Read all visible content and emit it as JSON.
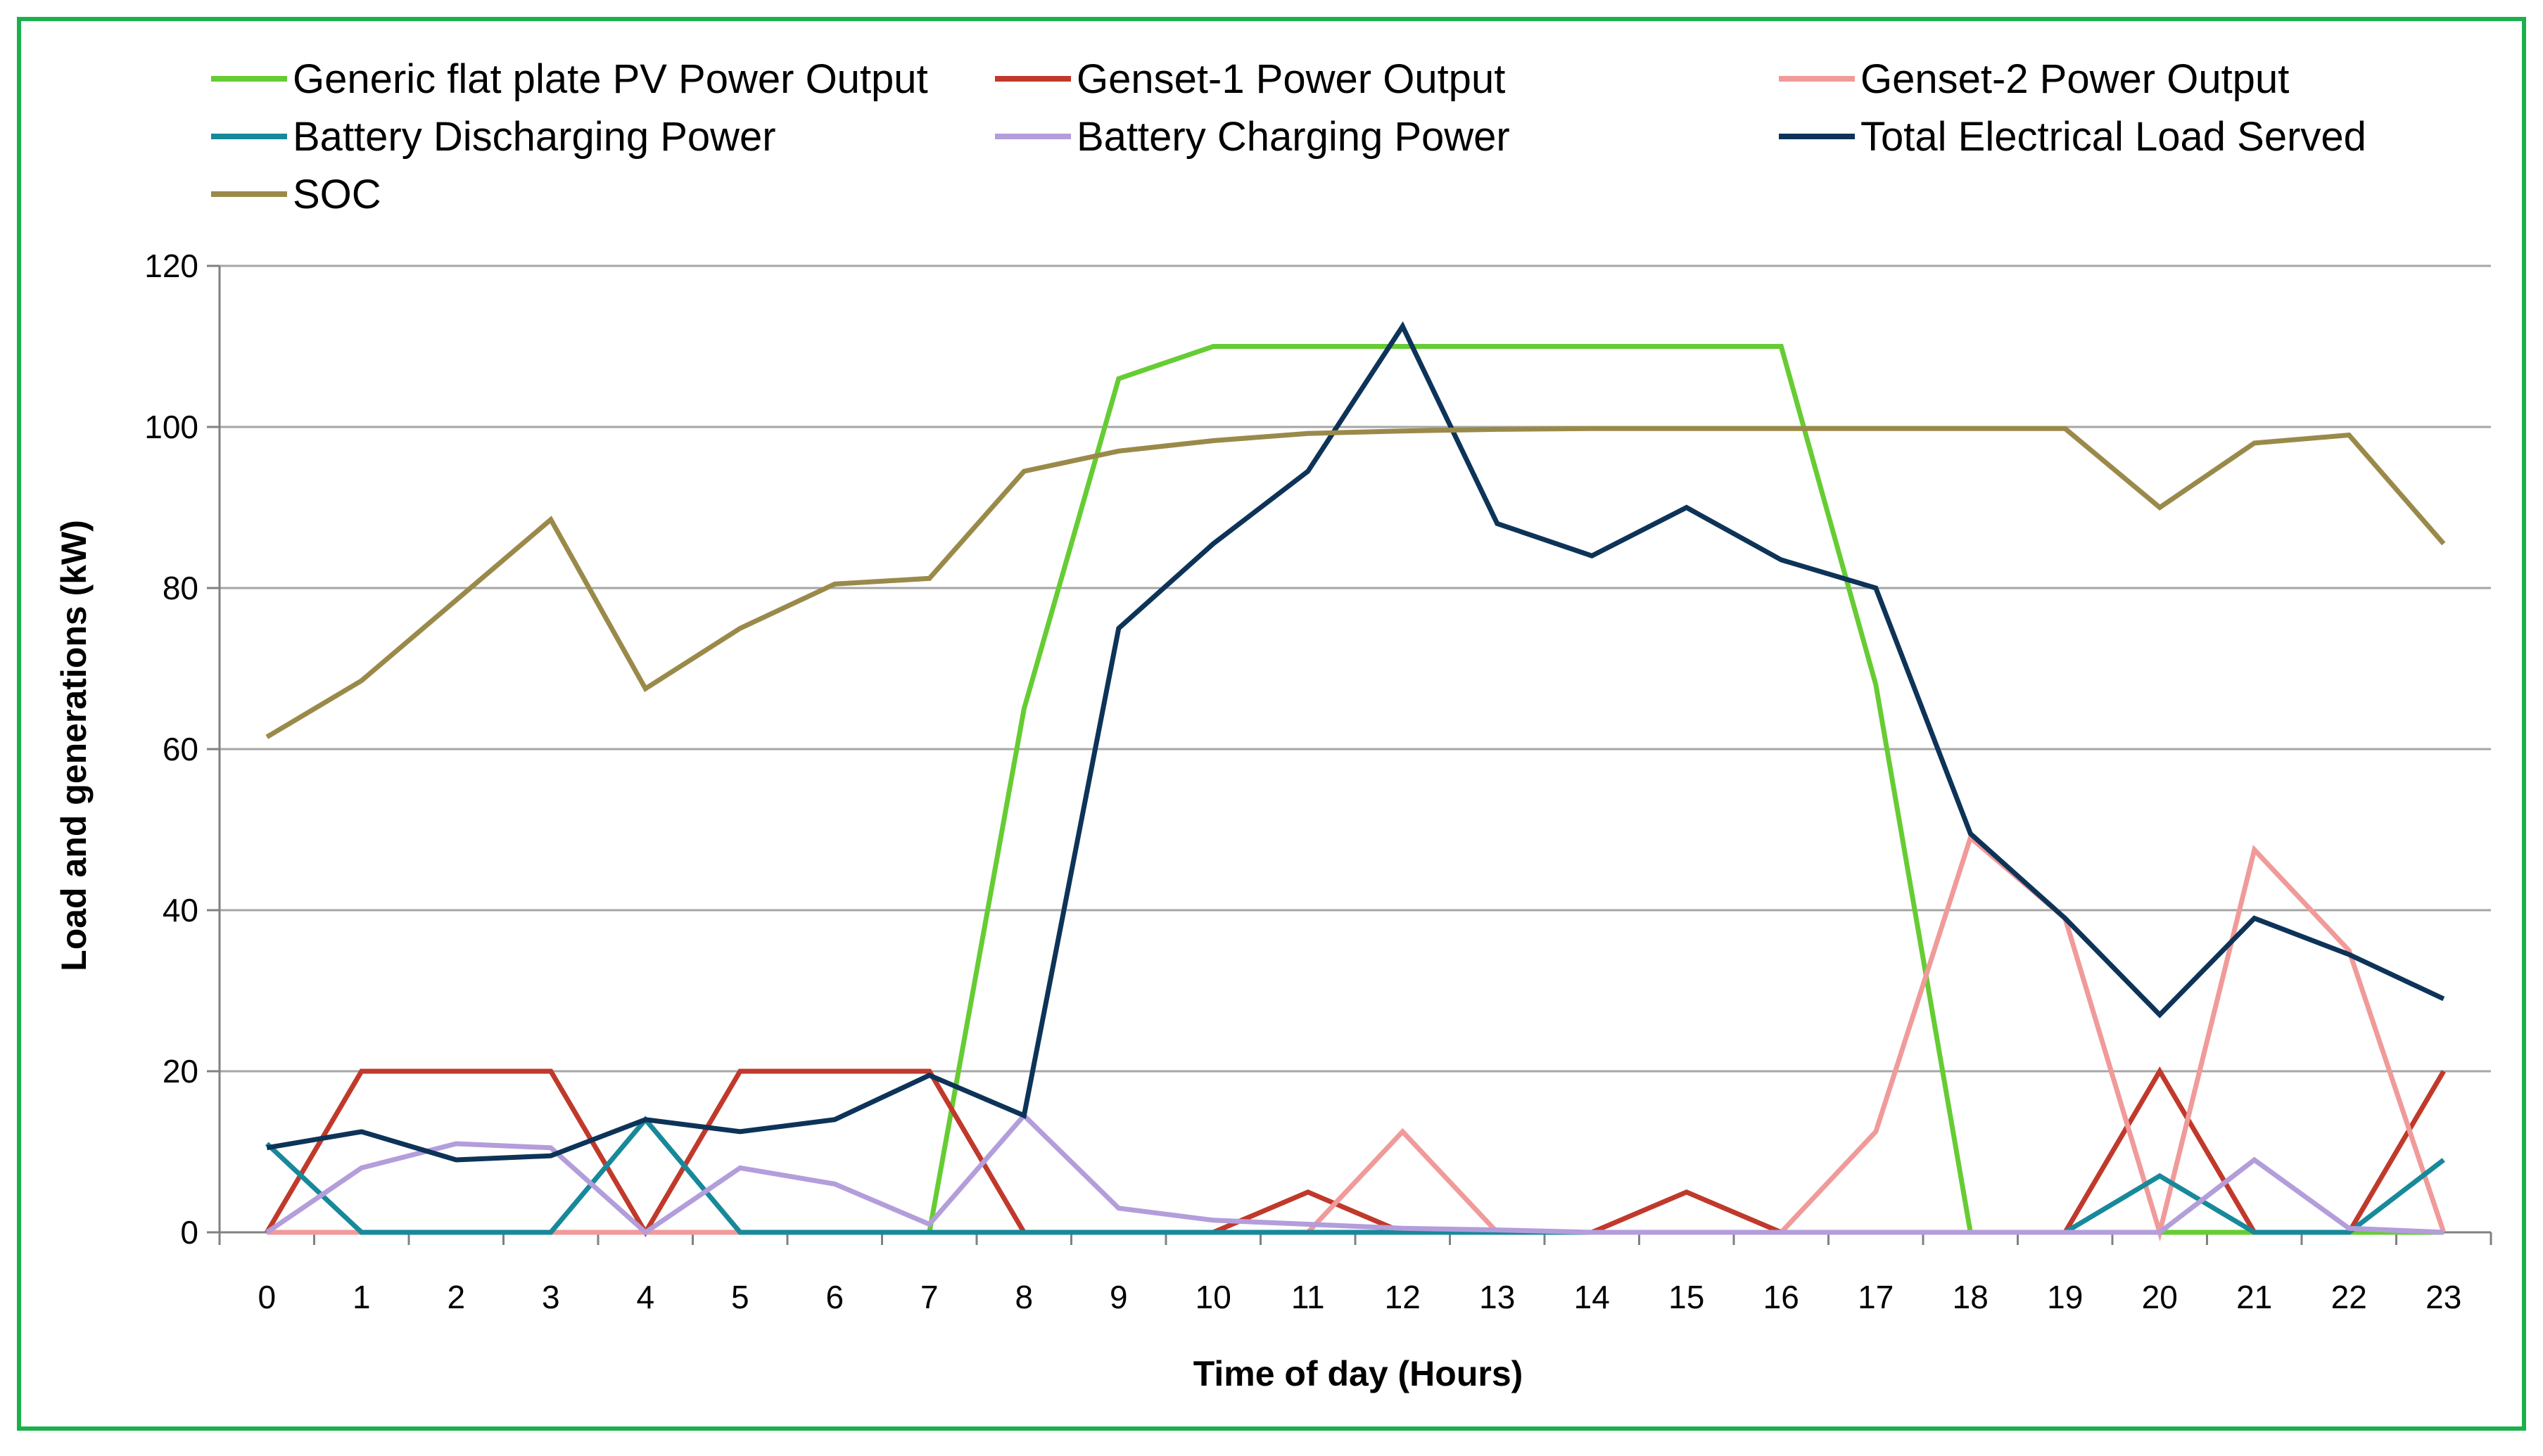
{
  "chart_data": {
    "type": "line",
    "title": "",
    "xlabel": "Time of day (Hours)",
    "ylabel": "Load and generations (kW)",
    "ylim": [
      0,
      120
    ],
    "yticks": [
      "0",
      "20",
      "40",
      "60",
      "80",
      "100",
      "120"
    ],
    "grid": true,
    "legend_position": "top",
    "categories": [
      "0",
      "1",
      "2",
      "3",
      "4",
      "5",
      "6",
      "7",
      "8",
      "9",
      "10",
      "11",
      "12",
      "13",
      "14",
      "15",
      "16",
      "17",
      "18",
      "19",
      "20",
      "21",
      "22",
      "23"
    ],
    "series": [
      {
        "name": "Generic flat plate PV Power Output",
        "color": "#66cc33",
        "values": [
          0,
          0,
          0,
          0,
          0,
          0,
          0,
          0,
          65,
          106,
          110,
          110,
          110,
          110,
          110,
          110,
          110,
          68,
          0,
          0,
          0,
          0,
          0,
          0
        ]
      },
      {
        "name": "Genset-1 Power Output",
        "color": "#c0392b",
        "values": [
          0,
          20,
          20,
          20,
          0,
          20,
          20,
          20,
          0,
          0,
          0,
          5,
          0,
          0,
          0,
          5,
          0,
          0,
          0,
          0,
          20,
          0,
          0,
          20
        ]
      },
      {
        "name": "Genset-2 Power Output",
        "color": "#f09a9a",
        "values": [
          0,
          0,
          0,
          0,
          0,
          0,
          0,
          0,
          0,
          0,
          0,
          0,
          12.5,
          0,
          0,
          0,
          0,
          12.5,
          49,
          39,
          0,
          47.5,
          35,
          0
        ]
      },
      {
        "name": "Battery Discharging Power",
        "color": "#17899a",
        "values": [
          11,
          0,
          0,
          0,
          14,
          0,
          0,
          0,
          0,
          0,
          0,
          0,
          0,
          0,
          0,
          0,
          0,
          0,
          0,
          0,
          7,
          0,
          0,
          9
        ]
      },
      {
        "name": "Battery Charging Power",
        "color": "#b39ddb",
        "values": [
          0,
          8,
          11,
          10.5,
          0,
          8,
          6,
          1,
          14.5,
          3,
          1.5,
          1,
          0.5,
          0.3,
          0,
          0,
          0,
          0,
          0,
          0,
          0,
          9,
          0.5,
          0
        ]
      },
      {
        "name": "Total Electrical Load Served",
        "color": "#0d3358",
        "values": [
          10.5,
          12.5,
          9,
          9.5,
          14,
          12.5,
          14,
          19.5,
          14.5,
          75,
          85.5,
          94.5,
          112.5,
          88,
          84,
          90,
          83.5,
          80,
          49.5,
          39,
          27,
          39,
          34.5,
          29
        ]
      },
      {
        "name": "SOC",
        "color": "#9a8a4a",
        "values": [
          61.5,
          68.5,
          78.5,
          88.5,
          67.5,
          75,
          80.5,
          81.2,
          94.5,
          97,
          98.3,
          99.2,
          99.5,
          99.7,
          99.8,
          99.8,
          99.8,
          99.8,
          99.8,
          99.8,
          90,
          98,
          99,
          85.5
        ]
      }
    ]
  }
}
